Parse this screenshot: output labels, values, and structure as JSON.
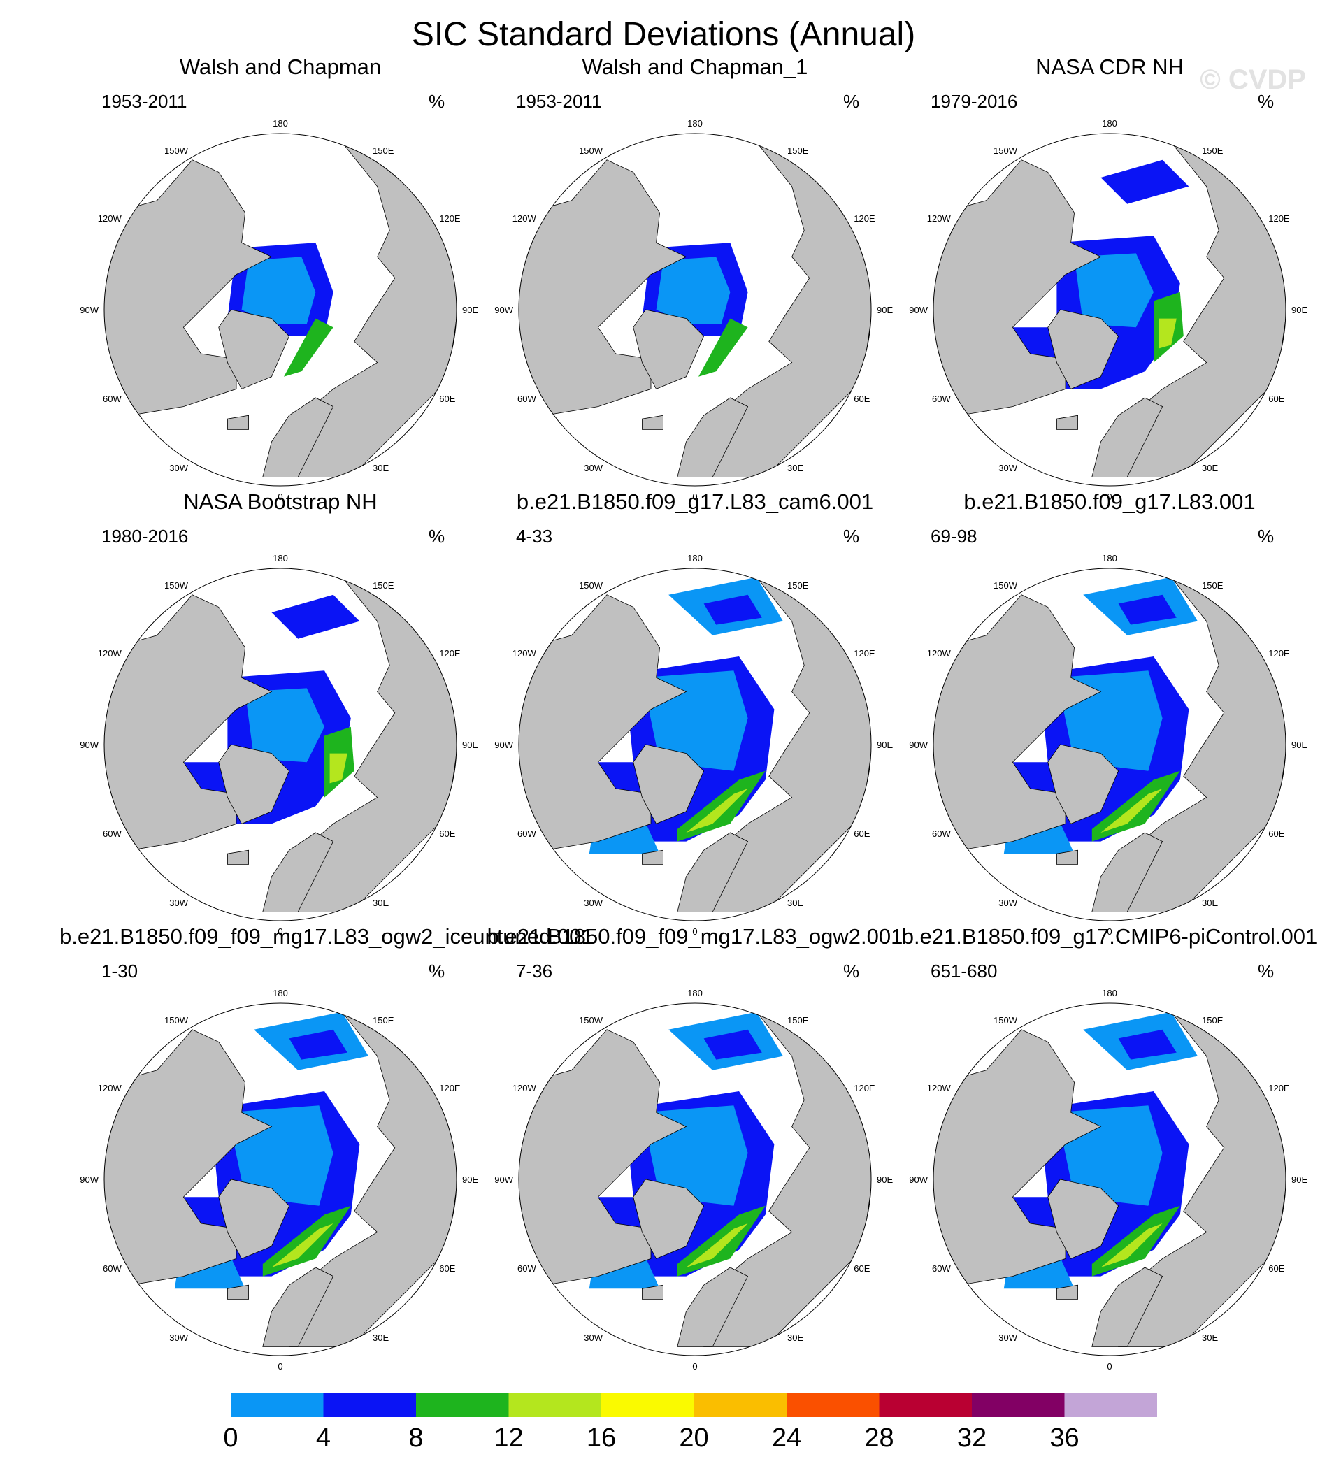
{
  "title": "SIC Standard Deviations (Annual)",
  "watermark": "© CVDP",
  "units": "%",
  "map_labels": {
    "top": "180",
    "bottom": "0",
    "left": "90W",
    "right": "90E",
    "upper_left_outer": "120W",
    "upper_left_inner": "150W",
    "upper_right_inner": "150E",
    "upper_right_outer": "120E",
    "lower_left_outer": "60W",
    "lower_left_inner": "30W",
    "lower_right_inner": "30E",
    "lower_right_outer": "60E"
  },
  "panels": [
    {
      "title": "Walsh and Chapman",
      "period": "1953-2011",
      "pattern": "obs_wc"
    },
    {
      "title": "Walsh and Chapman_1",
      "period": "1953-2011",
      "pattern": "obs_wc"
    },
    {
      "title": "NASA CDR NH",
      "period": "1979-2016",
      "pattern": "obs_nasa"
    },
    {
      "title": "NASA Bootstrap NH",
      "period": "1980-2016",
      "pattern": "obs_nasa"
    },
    {
      "title": "b.e21.B1850.f09_g17.L83_cam6.001",
      "period": "4-33",
      "pattern": "model"
    },
    {
      "title": "b.e21.B1850.f09_g17.L83.001",
      "period": "69-98",
      "pattern": "model"
    },
    {
      "title": "b.e21.B1850.f09_f09_mg17.L83_ogw2_iceuntuned.001",
      "period": "1-30",
      "pattern": "model"
    },
    {
      "title": "b.e21.B1850.f09_f09_mg17.L83_ogw2.001",
      "period": "7-36",
      "pattern": "model"
    },
    {
      "title": "b.e21.B1850.f09_g17.CMIP6-piControl.001",
      "period": "651-680",
      "pattern": "model"
    }
  ],
  "colorbar": {
    "ticks": [
      "0",
      "4",
      "8",
      "12",
      "16",
      "20",
      "24",
      "28",
      "32",
      "36"
    ],
    "colors": [
      "#0a96f5",
      "#0a14f5",
      "#1eb41e",
      "#b4e61e",
      "#fafa00",
      "#fabe00",
      "#fa5000",
      "#b90032",
      "#820064",
      "#c3a5d7"
    ]
  },
  "land_color": "#c0c0c0",
  "ocean_color": "#ffffff"
}
